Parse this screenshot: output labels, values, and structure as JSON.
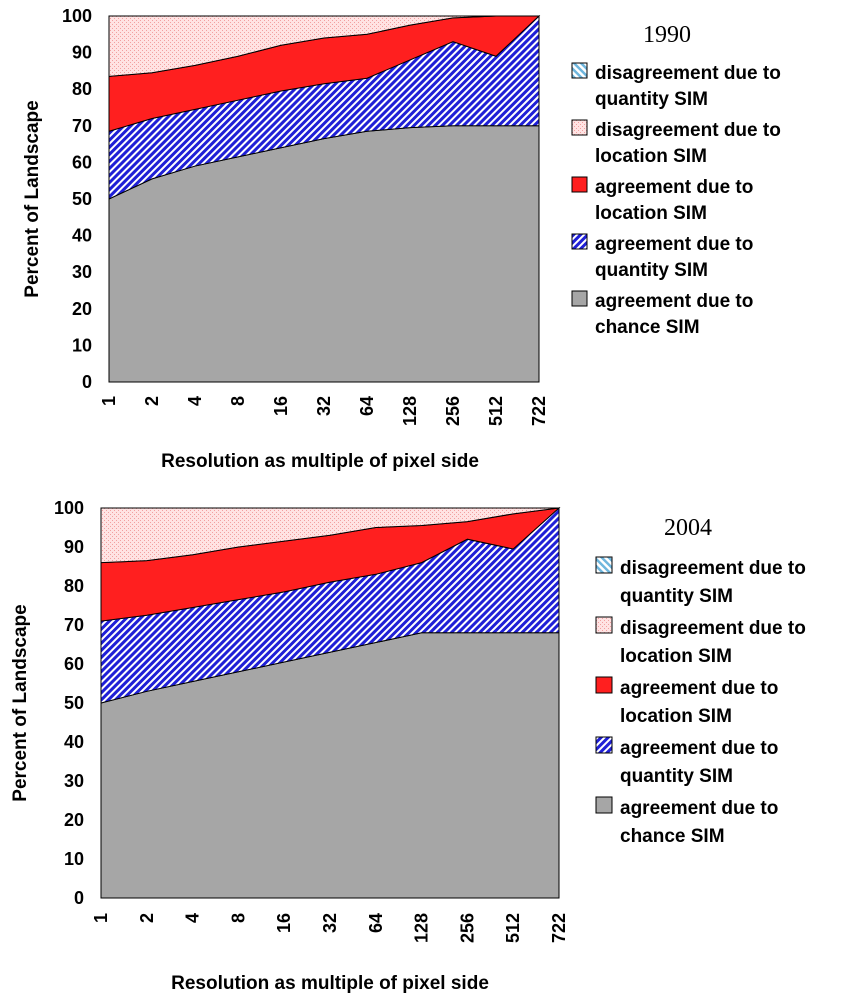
{
  "chart_data": [
    {
      "type": "area",
      "stacked": true,
      "title": "1990",
      "xlabel": "Resolution as multiple of pixel side",
      "ylabel": "Percent of Landscape",
      "ylim": [
        0,
        100
      ],
      "yticks": [
        "0",
        "10",
        "20",
        "30",
        "40",
        "50",
        "60",
        "70",
        "80",
        "90",
        "100"
      ],
      "categories": [
        "1",
        "2",
        "4",
        "8",
        "16",
        "32",
        "64",
        "128",
        "256",
        "512",
        "722"
      ],
      "series": [
        {
          "name": "agreement due to chance SIM",
          "label_lines": [
            "agreement due to",
            "chance SIM"
          ],
          "color": "#a6a6a6",
          "pattern": "solid",
          "values": [
            50,
            55.5,
            59,
            61.5,
            64,
            66.5,
            68.5,
            69.5,
            70,
            70,
            70
          ]
        },
        {
          "name": "agreement due to quantity SIM",
          "label_lines": [
            "agreement due to",
            "quantity SIM"
          ],
          "color": "#1f1fd6",
          "pattern": "hatch",
          "values": [
            18.5,
            16.5,
            15.5,
            15.5,
            15.5,
            15,
            14.5,
            18.5,
            23,
            19,
            30
          ]
        },
        {
          "name": "agreement due to location SIM",
          "label_lines": [
            "agreement due to",
            "location SIM"
          ],
          "color": "#ff1f1f",
          "pattern": "solid",
          "values": [
            15,
            12.5,
            12,
            12,
            12.5,
            12.5,
            12,
            9.5,
            6.5,
            11,
            0
          ]
        },
        {
          "name": "disagreement due to location SIM",
          "label_lines": [
            "disagreement due to",
            "location SIM"
          ],
          "color": "#ffe0e0",
          "pattern": "dots",
          "values": [
            16.5,
            15.5,
            13.5,
            11,
            8,
            6,
            5,
            2.5,
            0.5,
            0,
            0
          ]
        },
        {
          "name": "disagreement due to quantity SIM",
          "label_lines": [
            "disagreement due to",
            "quantity SIM"
          ],
          "color": "#9fd4ef",
          "pattern": "hatch",
          "values": [
            0,
            0,
            0,
            0,
            0,
            0,
            0,
            0,
            0,
            0,
            0
          ]
        }
      ]
    },
    {
      "type": "area",
      "stacked": true,
      "title": "2004",
      "xlabel": "Resolution as multiple of pixel side",
      "ylabel": "Percent of Landscape",
      "ylim": [
        0,
        100
      ],
      "yticks": [
        "0",
        "10",
        "20",
        "30",
        "40",
        "50",
        "60",
        "70",
        "80",
        "90",
        "100"
      ],
      "categories": [
        "1",
        "2",
        "4",
        "8",
        "16",
        "32",
        "64",
        "128",
        "256",
        "512",
        "722"
      ],
      "series": [
        {
          "name": "agreement due to chance SIM",
          "label_lines": [
            "agreement due to",
            "chance SIM"
          ],
          "color": "#a6a6a6",
          "pattern": "solid",
          "values": [
            50,
            53,
            55.5,
            58,
            60.5,
            63,
            65.5,
            68,
            68,
            68,
            68
          ]
        },
        {
          "name": "agreement due to quantity SIM",
          "label_lines": [
            "agreement due to",
            "quantity SIM"
          ],
          "color": "#1f1fd6",
          "pattern": "hatch",
          "values": [
            21,
            19.5,
            19,
            18.5,
            18,
            18,
            17.5,
            18,
            24,
            21.5,
            32
          ]
        },
        {
          "name": "agreement due to location SIM",
          "label_lines": [
            "agreement due to",
            "location SIM"
          ],
          "color": "#ff1f1f",
          "pattern": "solid",
          "values": [
            15,
            14,
            13.5,
            13.5,
            13,
            12,
            12,
            9.5,
            4.5,
            9,
            0
          ]
        },
        {
          "name": "disagreement due to location SIM",
          "label_lines": [
            "disagreement due to",
            "location SIM"
          ],
          "color": "#ffe0e0",
          "pattern": "dots",
          "values": [
            14,
            13.5,
            12,
            10,
            8.5,
            7,
            5,
            4.5,
            3.5,
            1.5,
            0
          ]
        },
        {
          "name": "disagreement due to quantity SIM",
          "label_lines": [
            "disagreement due to",
            "quantity SIM"
          ],
          "color": "#9fd4ef",
          "pattern": "hatch",
          "values": [
            0,
            0,
            0,
            0,
            0,
            0,
            0,
            0,
            0,
            0,
            0
          ]
        }
      ]
    }
  ]
}
